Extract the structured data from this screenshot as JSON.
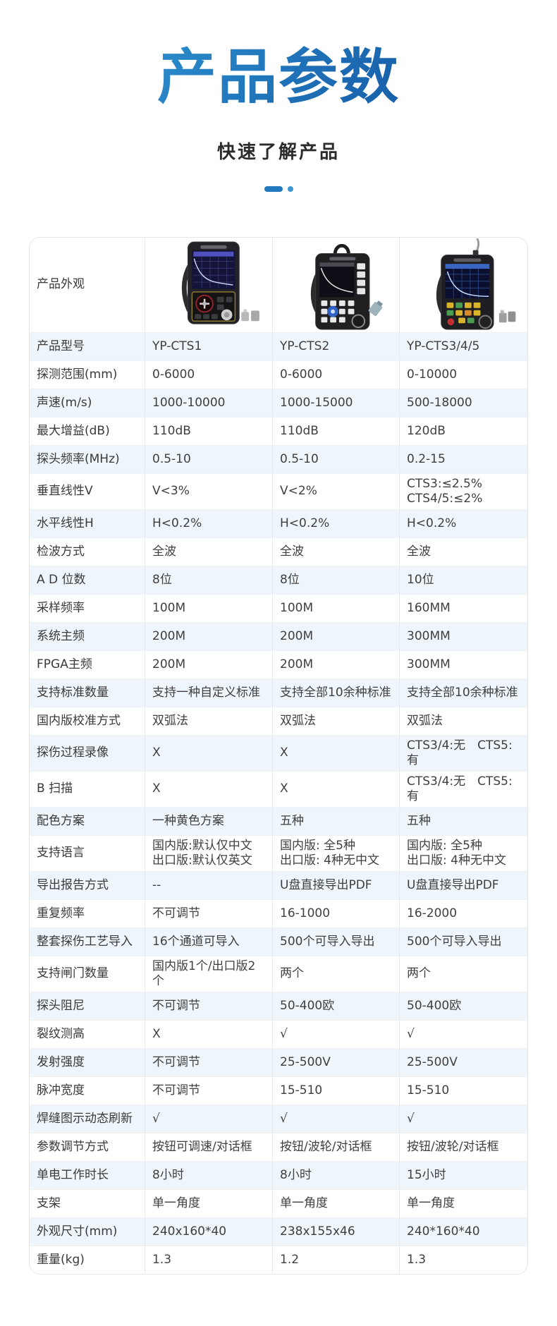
{
  "header": {
    "title": "产品参数",
    "subtitle": "快速了解产品"
  },
  "colors": {
    "title_gradient_start": "#35a6de",
    "title_gradient_end": "#124f9b",
    "divider_blue": "#2279bd",
    "row_alt_bg": "#eef5fb",
    "table_border": "#e4e7ea",
    "text": "#3f3f3f"
  },
  "table": {
    "appearance_label": "产品外观",
    "models": [
      "YP-CTS1",
      "YP-CTS2",
      "YP-CTS3/4/5"
    ],
    "rows": [
      {
        "label": "产品型号",
        "values": [
          "YP-CTS1",
          "YP-CTS2",
          "YP-CTS3/4/5"
        ]
      },
      {
        "label": "探测范围(mm)",
        "values": [
          "0-6000",
          "0-6000",
          "0-10000"
        ]
      },
      {
        "label": "声速(m/s)",
        "values": [
          "1000-10000",
          "1000-15000",
          "500-18000"
        ]
      },
      {
        "label": "最大增益(dB)",
        "values": [
          "110dB",
          "110dB",
          "120dB"
        ]
      },
      {
        "label": "探头频率(MHz)",
        "values": [
          "0.5-10",
          "0.5-10",
          "0.2-15"
        ]
      },
      {
        "label": "垂直线性V",
        "values": [
          "V<3%",
          "V<2%",
          "CTS3:≤2.5%\nCTS4/5:≤2%"
        ]
      },
      {
        "label": "水平线性H",
        "values": [
          "H<0.2%",
          "H<0.2%",
          "H<0.2%"
        ]
      },
      {
        "label": "检波方式",
        "values": [
          "全波",
          "全波",
          "全波"
        ]
      },
      {
        "label": "A D 位数",
        "values": [
          "8位",
          "8位",
          "10位"
        ]
      },
      {
        "label": "采样频率",
        "values": [
          "100M",
          "100M",
          "160MM"
        ]
      },
      {
        "label": "系统主频",
        "values": [
          "200M",
          "200M",
          "300MM"
        ]
      },
      {
        "label": "FPGA主频",
        "values": [
          "200M",
          "200M",
          "300MM"
        ]
      },
      {
        "label": "支持标准数量",
        "values": [
          "支持一种自定义标准",
          "支持全部10余种标准",
          "支持全部10余种标准"
        ]
      },
      {
        "label": "国内版校准方式",
        "values": [
          "双弧法",
          "双弧法",
          "双弧法"
        ]
      },
      {
        "label": "探伤过程录像",
        "values": [
          "X",
          "X",
          "CTS3/4:无　CTS5:有"
        ]
      },
      {
        "label": "B 扫描",
        "values": [
          "X",
          "X",
          "CTS3/4:无　CTS5:有"
        ]
      },
      {
        "label": "配色方案",
        "values": [
          "一种黄色方案",
          "五种",
          "五种"
        ]
      },
      {
        "label": "支持语言",
        "values": [
          "国内版:默认仅中文\n出口版:默认仅英文",
          "国内版: 全5种\n出口版: 4种无中文",
          "国内版: 全5种\n出口版: 4种无中文"
        ]
      },
      {
        "label": "导出报告方式",
        "values": [
          "--",
          "U盘直接导出PDF",
          "U盘直接导出PDF"
        ]
      },
      {
        "label": "重复频率",
        "values": [
          "不可调节",
          "16-1000",
          "16-2000"
        ]
      },
      {
        "label": "整套探伤工艺导入",
        "values": [
          "16个通道可导入",
          "500个可导入导出",
          "500个可导入导出"
        ]
      },
      {
        "label": "支持闸门数量",
        "values": [
          "国内版1个/出口版2个",
          "两个",
          "两个"
        ]
      },
      {
        "label": "探头阻尼",
        "values": [
          "不可调节",
          "50-400欧",
          "50-400欧"
        ]
      },
      {
        "label": "裂纹测高",
        "values": [
          "X",
          "√",
          "√"
        ]
      },
      {
        "label": "发射强度",
        "values": [
          "不可调节",
          "25-500V",
          "25-500V"
        ]
      },
      {
        "label": "脉冲宽度",
        "values": [
          "不可调节",
          "15-510",
          "15-510"
        ]
      },
      {
        "label": "焊缝图示动态刷新",
        "values": [
          "√",
          "√",
          "√"
        ]
      },
      {
        "label": "参数调节方式",
        "values": [
          "按钮可调速/对话框",
          "按钮/波轮/对话框",
          "按钮/波轮/对话框"
        ]
      },
      {
        "label": "单电工作时长",
        "values": [
          "8小时",
          "8小时",
          "15小时"
        ]
      },
      {
        "label": "支架",
        "values": [
          "单一角度",
          "单一角度",
          "单一角度"
        ]
      },
      {
        "label": "外观尺寸(mm)",
        "values": [
          "240x160*40",
          "238x155x46",
          "240*160*40"
        ]
      },
      {
        "label": "重量(kg)",
        "values": [
          "1.3",
          "1.2",
          "1.3"
        ]
      }
    ]
  }
}
